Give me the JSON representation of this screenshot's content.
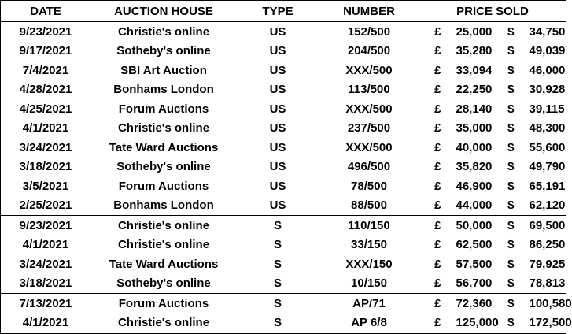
{
  "headers": {
    "date": "DATE",
    "house": "AUCTION HOUSE",
    "type": "TYPE",
    "number": "NUMBER",
    "price": "PRICE SOLD"
  },
  "currency": {
    "gbp": "£",
    "usd": "$"
  },
  "groups": [
    {
      "rows": [
        {
          "date": "9/23/2021",
          "house": "Christie's online",
          "type": "US",
          "number": "152/500",
          "gbp": "25,000",
          "usd": "34,750"
        },
        {
          "date": "9/17/2021",
          "house": "Sotheby's online",
          "type": "US",
          "number": "204/500",
          "gbp": "35,280",
          "usd": "49,039"
        },
        {
          "date": "7/4/2021",
          "house": "SBI Art Auction",
          "type": "US",
          "number": "XXX/500",
          "gbp": "33,094",
          "usd": "46,000"
        },
        {
          "date": "4/28/2021",
          "house": "Bonhams London",
          "type": "US",
          "number": "113/500",
          "gbp": "22,250",
          "usd": "30,928"
        },
        {
          "date": "4/25/2021",
          "house": "Forum Auctions",
          "type": "US",
          "number": "XXX/500",
          "gbp": "28,140",
          "usd": "39,115"
        },
        {
          "date": "4/1/2021",
          "house": "Christie's online",
          "type": "US",
          "number": "237/500",
          "gbp": "35,000",
          "usd": "48,300"
        },
        {
          "date": "3/24/2021",
          "house": "Tate Ward Auctions",
          "type": "US",
          "number": "XXX/500",
          "gbp": "40,000",
          "usd": "55,600"
        },
        {
          "date": "3/18/2021",
          "house": "Sotheby's online",
          "type": "US",
          "number": "496/500",
          "gbp": "35,820",
          "usd": "49,790"
        },
        {
          "date": "3/5/2021",
          "house": "Forum Auctions",
          "type": "US",
          "number": "78/500",
          "gbp": "46,900",
          "usd": "65,191"
        },
        {
          "date": "2/25/2021",
          "house": "Bonhams London",
          "type": "US",
          "number": "88/500",
          "gbp": "44,000",
          "usd": "62,120"
        }
      ]
    },
    {
      "rows": [
        {
          "date": "9/23/2021",
          "house": "Christie's online",
          "type": "S",
          "number": "110/150",
          "gbp": "50,000",
          "usd": "69,500"
        },
        {
          "date": "4/1/2021",
          "house": "Christie's online",
          "type": "S",
          "number": "33/150",
          "gbp": "62,500",
          "usd": "86,250"
        },
        {
          "date": "3/24/2021",
          "house": "Tate Ward Auctions",
          "type": "S",
          "number": "XXX/150",
          "gbp": "57,500",
          "usd": "79,925"
        },
        {
          "date": "3/18/2021",
          "house": "Sotheby's online",
          "type": "S",
          "number": "10/150",
          "gbp": "56,700",
          "usd": "78,813"
        }
      ]
    },
    {
      "rows": [
        {
          "date": "7/13/2021",
          "house": "Forum Auctions",
          "type": "S",
          "number": "AP/71",
          "gbp": "72,360",
          "usd": "100,580"
        },
        {
          "date": "4/1/2021",
          "house": "Christie's online",
          "type": "S",
          "number": "AP 6/8",
          "gbp": "125,000",
          "usd": "172,500"
        }
      ]
    }
  ]
}
